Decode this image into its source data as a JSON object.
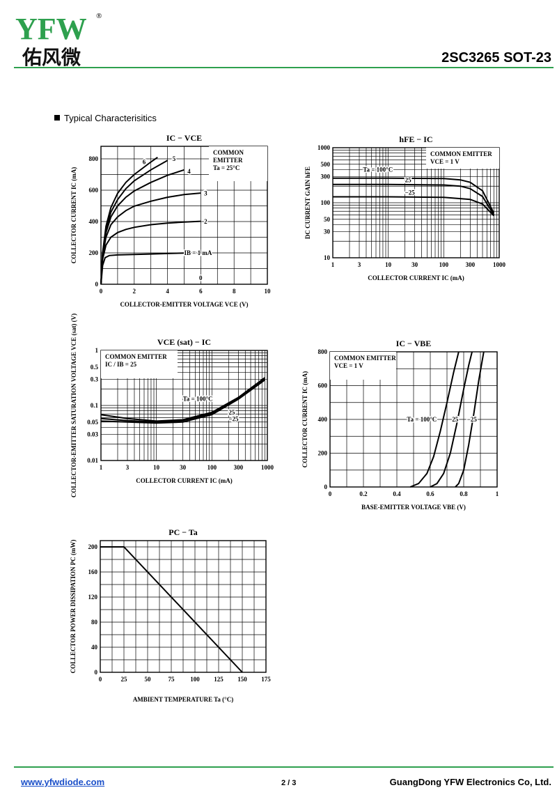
{
  "header": {
    "logo_text": "YFW",
    "logo_cn": "佑风微",
    "logo_registered": "®",
    "part_number": "2SC3265 SOT-23"
  },
  "section_title": "Typical Characterisitics",
  "chart_data": [
    {
      "id": "ic-vce",
      "type": "line",
      "title": "IC − VCE",
      "xlabel": "COLLECTOR-EMITTER VOLTAGE VCE (V)",
      "ylabel": "COLLECTOR CURRENT IC (mA)",
      "xlim": [
        0,
        10
      ],
      "ylim": [
        0,
        880
      ],
      "x_ticks": [
        0,
        2,
        4,
        6,
        8,
        10
      ],
      "y_ticks": [
        0,
        200,
        400,
        600,
        800
      ],
      "grid": true,
      "note": [
        "COMMON",
        "EMITTER",
        "Ta = 25°C"
      ],
      "series": [
        {
          "name": "IB = 1 mA",
          "label_at": [
            5.0,
            200
          ],
          "points": [
            [
              0,
              0
            ],
            [
              0.1,
              120
            ],
            [
              0.25,
              170
            ],
            [
              0.5,
              183
            ],
            [
              1,
              187
            ],
            [
              2,
              190
            ],
            [
              3,
              193
            ],
            [
              4,
              196
            ],
            [
              5,
              199
            ],
            [
              6,
              203
            ]
          ]
        },
        {
          "name": "2",
          "label_at": [
            6.2,
            400
          ],
          "points": [
            [
              0,
              0
            ],
            [
              0.1,
              160
            ],
            [
              0.3,
              250
            ],
            [
              0.6,
              300
            ],
            [
              1,
              330
            ],
            [
              1.5,
              350
            ],
            [
              2,
              363
            ],
            [
              3,
              380
            ],
            [
              4,
              390
            ],
            [
              5,
              397
            ],
            [
              6,
              402
            ]
          ]
        },
        {
          "name": "3",
          "label_at": [
            6.2,
            580
          ],
          "points": [
            [
              0,
              0
            ],
            [
              0.1,
              180
            ],
            [
              0.3,
              300
            ],
            [
              0.6,
              380
            ],
            [
              1,
              430
            ],
            [
              1.5,
              470
            ],
            [
              2,
              498
            ],
            [
              3,
              530
            ],
            [
              4,
              555
            ],
            [
              5,
              572
            ],
            [
              6,
              582
            ]
          ]
        },
        {
          "name": "4",
          "label_at": [
            5.2,
            720
          ],
          "points": [
            [
              0,
              0
            ],
            [
              0.1,
              190
            ],
            [
              0.3,
              330
            ],
            [
              0.6,
              430
            ],
            [
              1,
              500
            ],
            [
              1.5,
              555
            ],
            [
              2,
              595
            ],
            [
              3,
              650
            ],
            [
              4,
              695
            ],
            [
              5,
              730
            ]
          ]
        },
        {
          "name": "5",
          "label_at": [
            4.3,
            800
          ],
          "points": [
            [
              0,
              0
            ],
            [
              0.1,
              195
            ],
            [
              0.3,
              350
            ],
            [
              0.6,
              460
            ],
            [
              1,
              540
            ],
            [
              1.5,
              610
            ],
            [
              2,
              660
            ],
            [
              3,
              730
            ],
            [
              4,
              790
            ]
          ]
        },
        {
          "name": "6",
          "label_at": [
            2.5,
            780
          ],
          "points": [
            [
              0,
              0
            ],
            [
              0.1,
              200
            ],
            [
              0.3,
              370
            ],
            [
              0.6,
              490
            ],
            [
              1,
              580
            ],
            [
              1.5,
              650
            ],
            [
              2,
              700
            ],
            [
              2.5,
              740
            ],
            [
              3,
              780
            ],
            [
              3.4,
              810
            ]
          ]
        },
        {
          "name": "0",
          "label_at": [
            5.9,
            40
          ],
          "points": []
        }
      ]
    },
    {
      "id": "hfe-ic",
      "type": "line",
      "title": "hFE − IC",
      "xlabel": "COLLECTOR CURRENT IC (mA)",
      "ylabel": "DC CURRENT GAIN hFE",
      "xscale": "log",
      "yscale": "log",
      "xlim": [
        1,
        1000
      ],
      "ylim": [
        10,
        1000
      ],
      "x_ticks": [
        1,
        3,
        10,
        30,
        100,
        300,
        1000
      ],
      "y_ticks": [
        10,
        30,
        50,
        100,
        300,
        500,
        1000
      ],
      "grid": true,
      "note": [
        "COMMON EMITTER",
        "VCE = 1 V"
      ],
      "series": [
        {
          "name": "Ta = 100°C",
          "points": [
            [
              1,
              280
            ],
            [
              10,
              280
            ],
            [
              100,
              275
            ],
            [
              200,
              260
            ],
            [
              300,
              235
            ],
            [
              500,
              165
            ],
            [
              800,
              65
            ]
          ]
        },
        {
          "name": "25",
          "points": [
            [
              1,
              215
            ],
            [
              10,
              215
            ],
            [
              100,
              210
            ],
            [
              200,
              200
            ],
            [
              300,
              180
            ],
            [
              500,
              130
            ],
            [
              800,
              60
            ]
          ]
        },
        {
          "name": "−25",
          "points": [
            [
              1,
              128
            ],
            [
              10,
              128
            ],
            [
              100,
              125
            ],
            [
              300,
              115
            ],
            [
              500,
              95
            ],
            [
              800,
              58
            ]
          ]
        }
      ]
    },
    {
      "id": "vcesat-ic",
      "type": "line",
      "title": "VCE (sat) − IC",
      "xlabel": "COLLECTOR CURRENT IC (mA)",
      "ylabel": "COLLECTOR-EMITTER SATURATION VOLTAGE VCE (sat) (V)",
      "xscale": "log",
      "yscale": "log",
      "xlim": [
        1,
        1000
      ],
      "ylim": [
        0.01,
        1
      ],
      "x_ticks": [
        1,
        3,
        10,
        30,
        100,
        300,
        1000
      ],
      "y_ticks": [
        0.01,
        0.03,
        0.05,
        0.1,
        0.3,
        0.5,
        1
      ],
      "grid": true,
      "note": [
        "COMMON EMITTER",
        "IC / IB = 25"
      ],
      "series": [
        {
          "name": "Ta = 100°C",
          "points": [
            [
              1,
              0.068
            ],
            [
              3,
              0.058
            ],
            [
              10,
              0.052
            ],
            [
              30,
              0.055
            ],
            [
              100,
              0.075
            ],
            [
              300,
              0.14
            ],
            [
              900,
              0.32
            ]
          ]
        },
        {
          "name": "25",
          "points": [
            [
              1,
              0.058
            ],
            [
              3,
              0.053
            ],
            [
              10,
              0.05
            ],
            [
              30,
              0.053
            ],
            [
              100,
              0.072
            ],
            [
              300,
              0.135
            ],
            [
              900,
              0.3
            ]
          ]
        },
        {
          "name": "−25",
          "points": [
            [
              1,
              0.052
            ],
            [
              3,
              0.05
            ],
            [
              10,
              0.048
            ],
            [
              30,
              0.05
            ],
            [
              100,
              0.068
            ],
            [
              300,
              0.13
            ],
            [
              900,
              0.29
            ]
          ]
        }
      ]
    },
    {
      "id": "ic-vbe",
      "type": "line",
      "title": "IC − VBE",
      "xlabel": "BASE-EMITTER VOLTAGE VBE (V)",
      "ylabel": "COLLECTOR CURRENT IC (mA)",
      "xlim": [
        0,
        1.0
      ],
      "ylim": [
        0,
        800
      ],
      "x_ticks": [
        0,
        0.2,
        0.4,
        0.6,
        0.8,
        1.0
      ],
      "y_ticks": [
        0,
        200,
        400,
        600,
        800
      ],
      "grid": true,
      "note": [
        "COMMON EMITTER",
        "VCE = 1 V"
      ],
      "series": [
        {
          "name": "Ta = 100°C",
          "points": [
            [
              0.48,
              0
            ],
            [
              0.53,
              20
            ],
            [
              0.58,
              80
            ],
            [
              0.62,
              180
            ],
            [
              0.66,
              330
            ],
            [
              0.7,
              500
            ],
            [
              0.74,
              680
            ],
            [
              0.77,
              800
            ]
          ]
        },
        {
          "name": "25",
          "points": [
            [
              0.6,
              0
            ],
            [
              0.64,
              20
            ],
            [
              0.68,
              80
            ],
            [
              0.72,
              200
            ],
            [
              0.76,
              380
            ],
            [
              0.8,
              580
            ],
            [
              0.83,
              720
            ],
            [
              0.85,
              800
            ]
          ]
        },
        {
          "name": "−25",
          "points": [
            [
              0.75,
              0
            ],
            [
              0.77,
              20
            ],
            [
              0.8,
              100
            ],
            [
              0.83,
              250
            ],
            [
              0.86,
              430
            ],
            [
              0.89,
              630
            ],
            [
              0.92,
              800
            ]
          ]
        }
      ]
    },
    {
      "id": "pc-ta",
      "type": "line",
      "title": "PC − Ta",
      "xlabel": "AMBIENT TEMPERATURE Ta (°C)",
      "ylabel": "COLLECTOR POWER DISSIPATION PC (mW)",
      "xlim": [
        0,
        175
      ],
      "ylim": [
        0,
        210
      ],
      "x_ticks": [
        0,
        25,
        50,
        75,
        100,
        125,
        150,
        175
      ],
      "y_ticks": [
        0,
        40,
        80,
        120,
        160,
        200
      ],
      "grid": true,
      "series": [
        {
          "name": "",
          "points": [
            [
              0,
              200
            ],
            [
              25,
              200
            ],
            [
              150,
              0
            ]
          ]
        }
      ]
    }
  ],
  "footer": {
    "url": "www.yfwdiode.com",
    "page": "2 / 3",
    "company": "GuangDong YFW Electronics Co, Ltd."
  }
}
